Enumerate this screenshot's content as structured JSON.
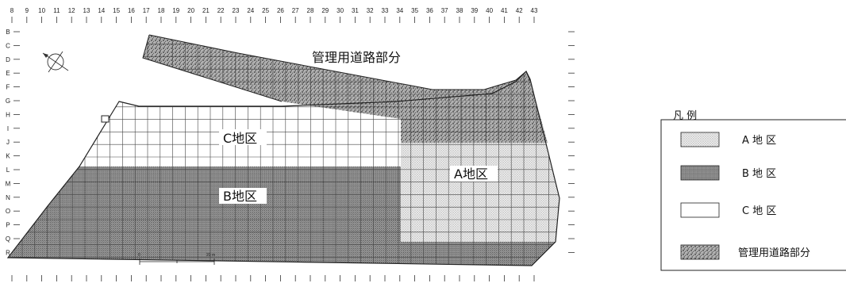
{
  "columns": [
    "8",
    "9",
    "10",
    "11",
    "12",
    "13",
    "14",
    "15",
    "16",
    "17",
    "18",
    "19",
    "20",
    "21",
    "22",
    "23",
    "24",
    "25",
    "26",
    "27",
    "28",
    "29",
    "30",
    "31",
    "32",
    "33",
    "34",
    "35",
    "36",
    "37",
    "38",
    "39",
    "40",
    "41",
    "42",
    "43"
  ],
  "rows": [
    "B",
    "C",
    "D",
    "E",
    "F",
    "G",
    "H",
    "I",
    "J",
    "K",
    "L",
    "M",
    "N",
    "O",
    "P",
    "Q",
    "R"
  ],
  "zones": {
    "road": "管理用道路部分",
    "c": "C地区",
    "a": "A地区",
    "b": "B地区"
  },
  "scale": {
    "start": "0",
    "end": "20 m"
  },
  "legend": {
    "title": "凡 例",
    "items": [
      {
        "label": "A 地 区",
        "pattern": "light-dots"
      },
      {
        "label": "B 地 区",
        "pattern": "dense-dots"
      },
      {
        "label": "C 地 区",
        "pattern": "white"
      },
      {
        "label": "管理用道路部分",
        "pattern": "coarse-stipple"
      }
    ]
  },
  "colors": {
    "line": "#222222",
    "background": "#ffffff"
  },
  "icons": [
    "north-arrow-icon"
  ]
}
